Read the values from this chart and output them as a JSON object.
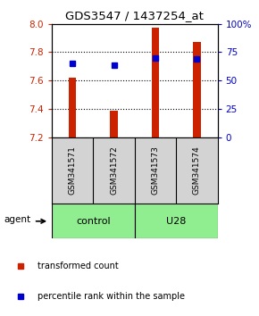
{
  "title": "GDS3547 / 1437254_at",
  "samples": [
    "GSM341571",
    "GSM341572",
    "GSM341573",
    "GSM341574"
  ],
  "groups": [
    "control",
    "control",
    "U28",
    "U28"
  ],
  "group_labels": [
    "control",
    "U28"
  ],
  "bar_bottom": 7.2,
  "bar_tops": [
    7.62,
    7.39,
    7.97,
    7.87
  ],
  "percentile_values": [
    7.72,
    7.71,
    7.76,
    7.75
  ],
  "ylim_left": [
    7.2,
    8.0
  ],
  "ylim_right": [
    0,
    100
  ],
  "yticks_left": [
    7.2,
    7.4,
    7.6,
    7.8,
    8.0
  ],
  "yticks_right": [
    0,
    25,
    50,
    75,
    100
  ],
  "bar_color": "#CC2200",
  "dot_color": "#0000CC",
  "left_tick_color": "#CC2200",
  "right_tick_color": "#0000CC",
  "legend_bar_label": "transformed count",
  "legend_dot_label": "percentile rank within the sample",
  "agent_label": "agent",
  "bgcolor": "#ffffff",
  "plot_bgcolor": "#ffffff",
  "sample_bg": "#d3d3d3",
  "ctrl_color": "#90EE90",
  "u28_color": "#90EE90",
  "bar_width": 0.18
}
